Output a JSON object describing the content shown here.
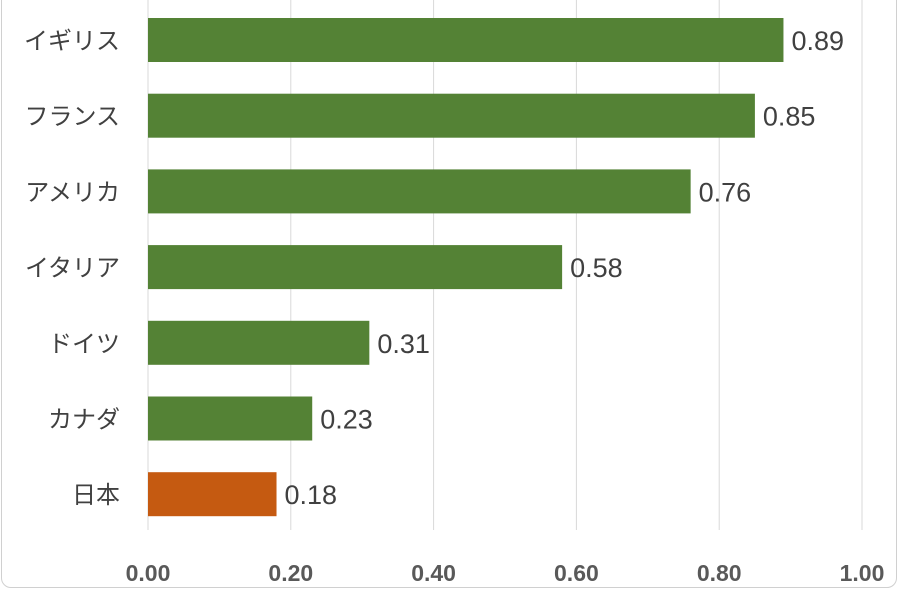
{
  "chart_data": {
    "type": "bar",
    "orientation": "horizontal",
    "title": "",
    "xlabel": "",
    "ylabel": "",
    "categories": [
      "イギリス",
      "フランス",
      "アメリカ",
      "イタリア",
      "ドイツ",
      "カナダ",
      "日本"
    ],
    "values": [
      0.89,
      0.85,
      0.76,
      0.58,
      0.31,
      0.23,
      0.18
    ],
    "value_labels": [
      "0.89",
      "0.85",
      "0.76",
      "0.58",
      "0.31",
      "0.23",
      "0.18"
    ],
    "bar_colors": [
      "#548235",
      "#548235",
      "#548235",
      "#548235",
      "#548235",
      "#548235",
      "#C55A11"
    ],
    "xlim": [
      0,
      1.0
    ],
    "x_ticks": [
      0,
      0.2,
      0.4,
      0.6,
      0.8,
      1.0
    ],
    "x_tick_labels": [
      "0.00",
      "0.20",
      "0.40",
      "0.60",
      "0.80",
      "1.00"
    ],
    "grid": "vertical",
    "legend": "none"
  }
}
